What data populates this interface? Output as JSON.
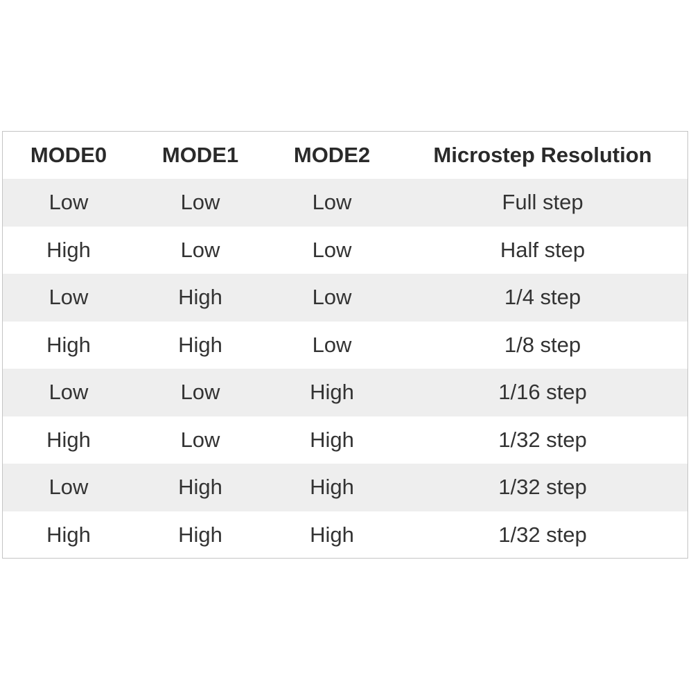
{
  "table": {
    "headers": [
      "MODE0",
      "MODE1",
      "MODE2",
      "Microstep Resolution"
    ],
    "rows": [
      [
        "Low",
        "Low",
        "Low",
        "Full step"
      ],
      [
        "High",
        "Low",
        "Low",
        "Half step"
      ],
      [
        "Low",
        "High",
        "Low",
        "1/4 step"
      ],
      [
        "High",
        "High",
        "Low",
        "1/8 step"
      ],
      [
        "Low",
        "Low",
        "High",
        "1/16 step"
      ],
      [
        "High",
        "Low",
        "High",
        "1/32 step"
      ],
      [
        "Low",
        "High",
        "High",
        "1/32 step"
      ],
      [
        "High",
        "High",
        "High",
        "1/32 step"
      ]
    ]
  },
  "colors": {
    "border": "#c4c4c4",
    "row_shaded": "#eeeeee",
    "row_plain": "#ffffff",
    "text": "#333333"
  }
}
